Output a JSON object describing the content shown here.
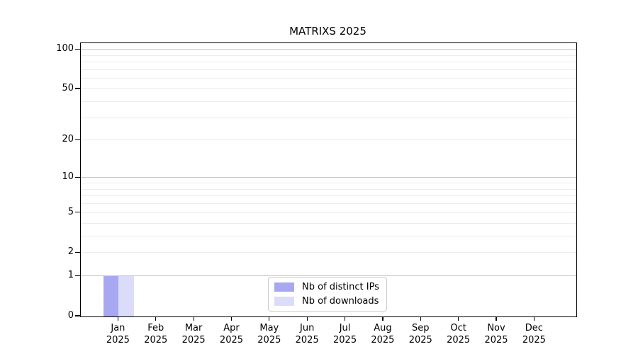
{
  "title": "MATRIXS 2025",
  "chart_data": {
    "type": "bar",
    "title": "MATRIXS 2025",
    "categories": [
      "Jan",
      "Feb",
      "Mar",
      "Apr",
      "May",
      "Jun",
      "Jul",
      "Aug",
      "Sep",
      "Oct",
      "Nov",
      "Dec"
    ],
    "category_year": "2025",
    "series": [
      {
        "name": "Nb of distinct IPs",
        "color": "#a8a8f2",
        "values": [
          1,
          0,
          0,
          0,
          0,
          0,
          0,
          0,
          0,
          0,
          0,
          0
        ]
      },
      {
        "name": "Nb of downloads",
        "color": "#dbdbfa",
        "values": [
          1,
          0,
          0,
          0,
          0,
          0,
          0,
          0,
          0,
          0,
          0,
          0
        ]
      }
    ],
    "yscale": "log10(1+v)",
    "ylim": [
      0,
      112
    ],
    "ytick_values": [
      0,
      1,
      2,
      5,
      10,
      20,
      50,
      100
    ],
    "ytick_labels": [
      "0",
      "1",
      "2",
      "5",
      "10",
      "20",
      "50",
      "100"
    ],
    "major_gridline_values": [
      1,
      10,
      100
    ],
    "minor_gridline_values": [
      2,
      3,
      4,
      5,
      6,
      7,
      8,
      9,
      20,
      30,
      40,
      50,
      60,
      70,
      80,
      90
    ],
    "grid_on": true,
    "legend_position": "lower center",
    "colors": {
      "spine": "#000000",
      "grid_major": "#c6c6c6",
      "grid_minor": "#ececec",
      "legend_border": "#cccccc",
      "background": "#ffffff"
    }
  },
  "legend": {
    "items": [
      {
        "label": "Nb of distinct IPs"
      },
      {
        "label": "Nb of downloads"
      }
    ]
  }
}
